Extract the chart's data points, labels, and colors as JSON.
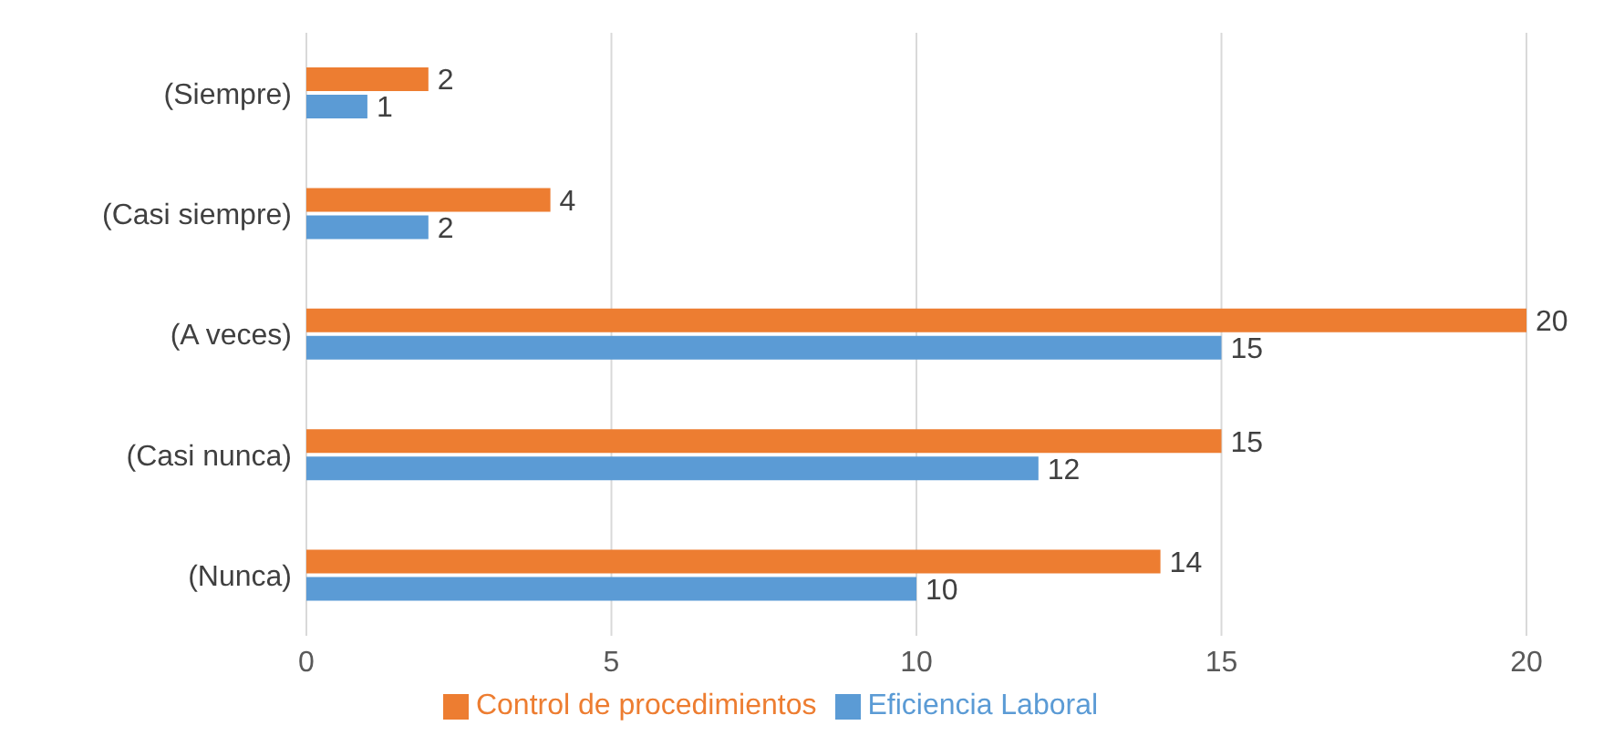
{
  "chart_data": {
    "type": "bar",
    "orientation": "horizontal",
    "categories": [
      "(Siempre)",
      "(Casi siempre)",
      "(A veces)",
      "(Casi nunca)",
      "(Nunca)"
    ],
    "series": [
      {
        "name": "Control de procedimientos",
        "color": "#ed7d31",
        "values": [
          2,
          4,
          20,
          15,
          14
        ]
      },
      {
        "name": "Eficiencia Laboral",
        "color": "#5b9bd5",
        "values": [
          1,
          2,
          15,
          12,
          10
        ]
      }
    ],
    "xlim": [
      0,
      20
    ],
    "xticks": [
      0,
      5,
      10,
      15,
      20
    ],
    "grid": "x",
    "legend": "bottom",
    "data_labels": true
  }
}
